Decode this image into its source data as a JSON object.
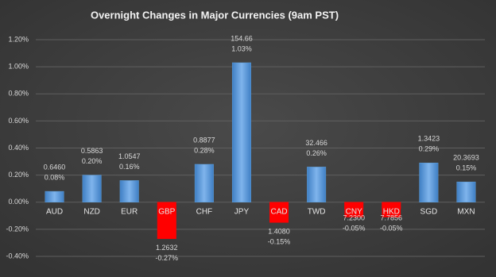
{
  "chart_data": {
    "type": "bar",
    "title": "Overnight Changes in Major Currencies (9am PST)",
    "categories": [
      "AUD",
      "NZD",
      "EUR",
      "GBP",
      "CHF",
      "JPY",
      "CAD",
      "TWD",
      "CNY",
      "HKD",
      "SGD",
      "MXN"
    ],
    "values": [
      0.08,
      0.2,
      0.16,
      -0.27,
      0.28,
      1.03,
      -0.15,
      0.26,
      -0.05,
      -0.05,
      0.29,
      0.15
    ],
    "value_labels": [
      "0.08%",
      "0.20%",
      "0.16%",
      "-0.27%",
      "0.28%",
      "1.03%",
      "-0.15%",
      "0.26%",
      "-0.05%",
      "-0.05%",
      "0.29%",
      "0.15%"
    ],
    "rates": [
      "0.6460",
      "0.5863",
      "1.0547",
      "1.2632",
      "0.8877",
      "154.66",
      "1.4080",
      "32.466",
      "7.2300",
      "7.7856",
      "1.3423",
      "20.3693"
    ],
    "color": "#5b9bd5",
    "negative_color": "#ff0000",
    "ylim": [
      -0.4,
      1.2
    ],
    "yticks": [
      {
        "value": -0.4,
        "label": "-0.40%"
      },
      {
        "value": -0.2,
        "label": "-0.20%"
      },
      {
        "value": 0,
        "label": "0.00%"
      },
      {
        "value": 0.2,
        "label": "0.20%"
      },
      {
        "value": 0.4,
        "label": "0.40%"
      },
      {
        "value": 0.6,
        "label": "0.60%"
      },
      {
        "value": 0.8,
        "label": "0.80%"
      },
      {
        "value": 1.0,
        "label": "1.00%"
      },
      {
        "value": 1.2,
        "label": "1.20%"
      }
    ],
    "grid": true
  }
}
